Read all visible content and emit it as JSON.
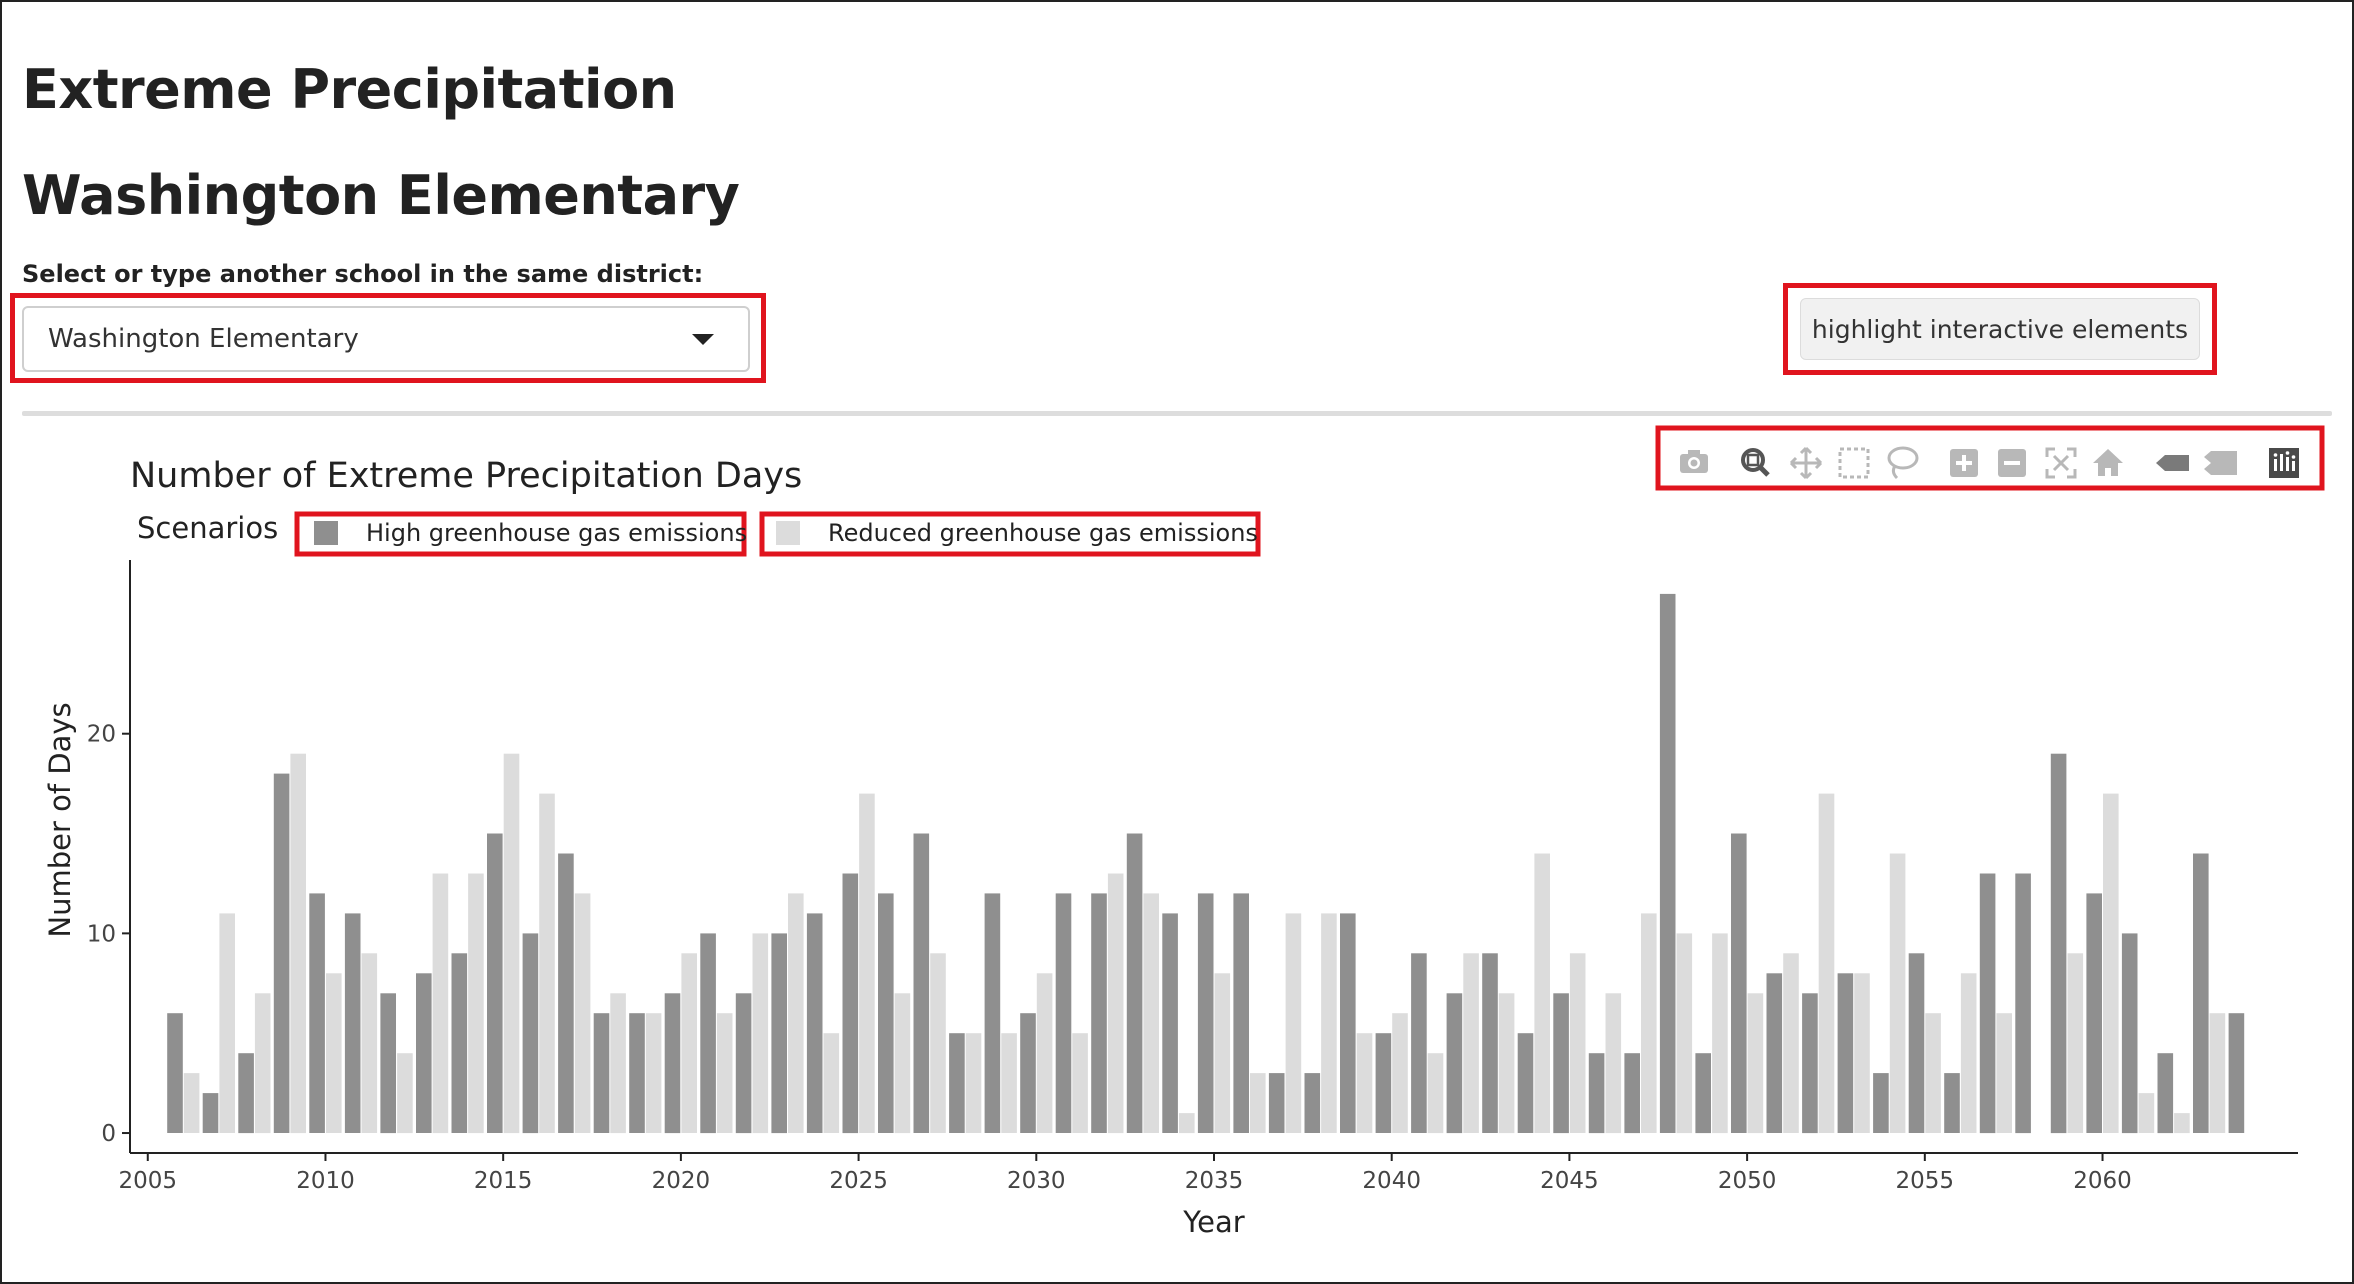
{
  "page": {
    "title": "Extreme Precipitation",
    "school_name": "Washington Elementary",
    "select_label": "Select or type another school in the same district:",
    "select_value": "Washington Elementary",
    "highlight_button": "highlight interactive elements"
  },
  "toolbar": {
    "icons": [
      "camera-icon",
      "zoom-icon",
      "pan-icon",
      "box-select-icon",
      "lasso-select-icon",
      "zoom-in-icon",
      "zoom-out-icon",
      "autoscale-icon",
      "reset-axes-icon",
      "hover-closest-icon",
      "hover-compare-icon",
      "plotly-logo-icon"
    ]
  },
  "colors": {
    "high": "#8f8f8f",
    "reduced": "#dcdcdc",
    "highlight": "#e0141e"
  },
  "chart_data": {
    "type": "bar",
    "title": "Number of Extreme Precipitation Days",
    "xlabel": "Year",
    "ylabel": "Number of Days",
    "legend_title": "Scenarios",
    "legend_placement": "top-left",
    "grid": false,
    "xlim": [
      2004.5,
      2065.5
    ],
    "ylim": [
      -1,
      28.7
    ],
    "x_ticks": [
      2005,
      2010,
      2015,
      2020,
      2025,
      2030,
      2035,
      2040,
      2045,
      2050,
      2055,
      2060
    ],
    "y_ticks": [
      0,
      10,
      20
    ],
    "x": [
      2006,
      2007,
      2008,
      2009,
      2010,
      2011,
      2012,
      2013,
      2014,
      2015,
      2016,
      2017,
      2018,
      2019,
      2020,
      2021,
      2022,
      2023,
      2024,
      2025,
      2026,
      2027,
      2028,
      2029,
      2030,
      2031,
      2032,
      2033,
      2034,
      2035,
      2036,
      2037,
      2038,
      2039,
      2040,
      2041,
      2042,
      2043,
      2044,
      2045,
      2046,
      2047,
      2048,
      2049,
      2050,
      2051,
      2052,
      2053,
      2054,
      2055,
      2056,
      2057,
      2058,
      2059,
      2060,
      2061,
      2062,
      2063,
      2064
    ],
    "series": [
      {
        "name": "High greenhouse gas emissions",
        "values": [
          6,
          2,
          4,
          18,
          12,
          11,
          7,
          8,
          9,
          15,
          10,
          14,
          6,
          6,
          7,
          10,
          7,
          10,
          11,
          13,
          12,
          15,
          5,
          12,
          6,
          12,
          12,
          15,
          11,
          12,
          12,
          3,
          3,
          11,
          5,
          9,
          7,
          9,
          5,
          7,
          4,
          4,
          27,
          4,
          15,
          8,
          7,
          8,
          3,
          9,
          3,
          13,
          13,
          19,
          12,
          10,
          4,
          14,
          6
        ]
      },
      {
        "name": "Reduced greenhouse gas emissions",
        "values": [
          3,
          11,
          7,
          19,
          8,
          9,
          4,
          13,
          13,
          19,
          17,
          12,
          7,
          6,
          9,
          6,
          10,
          12,
          5,
          17,
          7,
          9,
          5,
          5,
          8,
          5,
          13,
          12,
          1,
          8,
          3,
          11,
          11,
          5,
          6,
          4,
          9,
          7,
          14,
          9,
          7,
          11,
          10,
          10,
          7,
          9,
          17,
          8,
          14,
          6,
          8,
          6,
          0,
          9,
          17,
          2,
          1,
          6,
          0
        ]
      }
    ]
  }
}
